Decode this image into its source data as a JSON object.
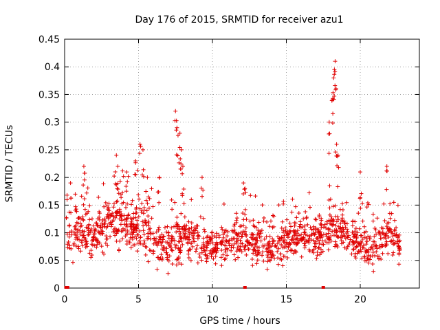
{
  "chart_data": {
    "type": "scatter",
    "title": "Day 176 of 2015, SRMTID for receiver azu1",
    "xlabel": "GPS time / hours",
    "ylabel": "SRMTID / TECUs",
    "xlim": [
      0,
      24
    ],
    "ylim": [
      0,
      0.45
    ],
    "xticks": [
      0,
      5,
      10,
      15,
      20
    ],
    "xtick_labels": [
      "0",
      "5",
      "10",
      "15",
      "20"
    ],
    "yticks": [
      0,
      0.05,
      0.1,
      0.15,
      0.2,
      0.25,
      0.3,
      0.35,
      0.4,
      0.45
    ],
    "ytick_labels": [
      "0",
      "0.05",
      "0.1",
      "0.15",
      "0.2",
      "0.25",
      "0.3",
      "0.35",
      "0.4",
      "0.45"
    ],
    "grid": true,
    "marker": "+",
    "color": "#e00000",
    "series": [
      {
        "name": "SRMTID",
        "band_hours": [
          0.1,
          22.7
        ],
        "band_profile": [
          [
            0.1,
            0.06,
            0.14
          ],
          [
            1.0,
            0.06,
            0.15
          ],
          [
            2.0,
            0.06,
            0.13
          ],
          [
            3.0,
            0.07,
            0.16
          ],
          [
            3.7,
            0.08,
            0.18
          ],
          [
            4.5,
            0.07,
            0.15
          ],
          [
            5.0,
            0.07,
            0.17
          ],
          [
            6.0,
            0.05,
            0.13
          ],
          [
            7.0,
            0.04,
            0.11
          ],
          [
            8.0,
            0.06,
            0.13
          ],
          [
            9.0,
            0.05,
            0.12
          ],
          [
            10.0,
            0.05,
            0.1
          ],
          [
            11.0,
            0.05,
            0.11
          ],
          [
            12.0,
            0.06,
            0.13
          ],
          [
            13.0,
            0.05,
            0.12
          ],
          [
            14.0,
            0.04,
            0.1
          ],
          [
            15.0,
            0.05,
            0.12
          ],
          [
            16.0,
            0.06,
            0.13
          ],
          [
            17.0,
            0.06,
            0.12
          ],
          [
            18.0,
            0.07,
            0.14
          ],
          [
            19.0,
            0.06,
            0.13
          ],
          [
            20.0,
            0.05,
            0.11
          ],
          [
            21.0,
            0.04,
            0.1
          ],
          [
            22.0,
            0.06,
            0.13
          ],
          [
            22.7,
            0.05,
            0.1
          ]
        ],
        "spikes": [
          [
            3.5,
            0.24
          ],
          [
            3.6,
            0.22
          ],
          [
            4.2,
            0.21
          ],
          [
            4.8,
            0.23
          ],
          [
            5.1,
            0.26
          ],
          [
            5.3,
            0.25
          ],
          [
            5.6,
            0.2
          ],
          [
            6.4,
            0.2
          ],
          [
            7.5,
            0.32
          ],
          [
            7.6,
            0.29
          ],
          [
            7.8,
            0.28
          ],
          [
            7.9,
            0.25
          ],
          [
            8.0,
            0.22
          ],
          [
            1.3,
            0.22
          ],
          [
            12.1,
            0.19
          ],
          [
            12.2,
            0.18
          ],
          [
            17.9,
            0.3
          ],
          [
            18.1,
            0.34
          ],
          [
            18.2,
            0.38
          ],
          [
            18.25,
            0.395
          ],
          [
            18.3,
            0.41
          ],
          [
            18.4,
            0.26
          ],
          [
            18.5,
            0.24
          ],
          [
            20.0,
            0.21
          ],
          [
            21.8,
            0.22
          ],
          [
            9.3,
            0.2
          ],
          [
            0.4,
            0.19
          ]
        ],
        "near_zero_points": [
          [
            0.1,
            0.0
          ],
          [
            0.2,
            0.0
          ],
          [
            12.2,
            0.0
          ],
          [
            17.5,
            0.0
          ]
        ]
      }
    ]
  }
}
